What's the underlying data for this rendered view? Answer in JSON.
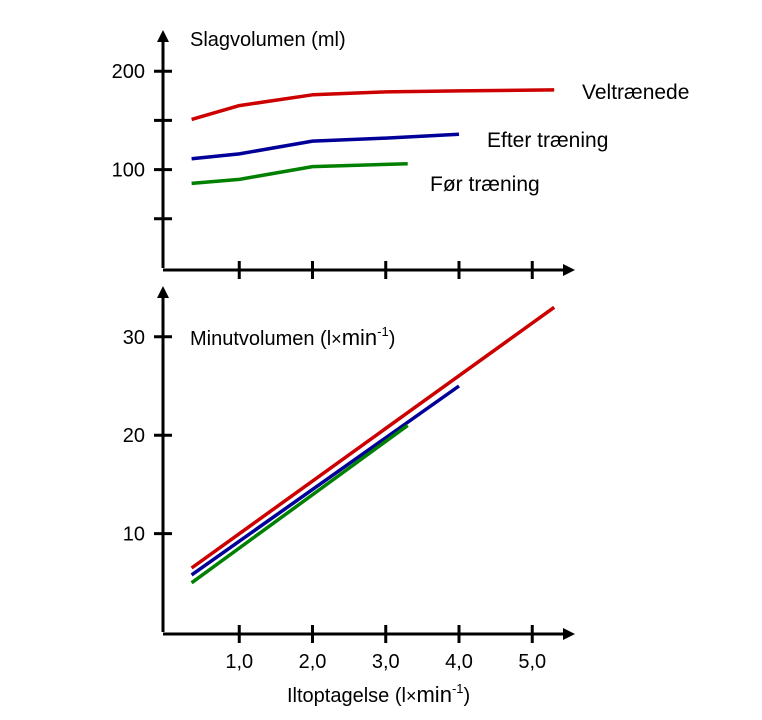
{
  "chart_data": [
    {
      "type": "line",
      "title": "Slagvolumen (ml)",
      "ylim": [
        0,
        200
      ],
      "xlim": [
        0,
        5.5
      ],
      "yticks": [
        50,
        100,
        150,
        200
      ],
      "ytick_labels": [
        "",
        "100",
        "",
        "200"
      ],
      "xticks": [
        1,
        2,
        3,
        4,
        5
      ],
      "grid": false,
      "series": [
        {
          "name": "Veltrænede",
          "color": "#cc0000",
          "x": [
            0.35,
            1.0,
            2.0,
            3.0,
            4.0,
            5.3
          ],
          "y": [
            151,
            165,
            176,
            179,
            180,
            181
          ]
        },
        {
          "name": "Efter træning",
          "color": "#000099",
          "x": [
            0.35,
            1.0,
            2.0,
            3.0,
            4.0
          ],
          "y": [
            111,
            116,
            129,
            132,
            136
          ]
        },
        {
          "name": "Før træning",
          "color": "#008000",
          "x": [
            0.35,
            1.0,
            2.0,
            3.3
          ],
          "y": [
            86,
            90,
            103,
            106
          ]
        }
      ]
    },
    {
      "type": "line",
      "title_main": "Minutvolumen (l",
      "title_times": "×",
      "title_unit": "min",
      "title_exp": "-1",
      "title_close": ")",
      "ylim": [
        0,
        35
      ],
      "xlim": [
        0,
        5.5
      ],
      "yticks": [
        10,
        20,
        30
      ],
      "ytick_labels": [
        "10",
        "20",
        "30"
      ],
      "xticks": [
        1,
        2,
        3,
        4,
        5
      ],
      "xtick_labels": [
        "1,0",
        "2,0",
        "3,0",
        "4,0",
        "5,0"
      ],
      "xlabel_main": "Iltoptagelse (l",
      "xlabel_times": "×",
      "xlabel_unit": "min",
      "xlabel_exp": "-1",
      "xlabel_close": ")",
      "grid": false,
      "series": [
        {
          "color": "#cc0000",
          "x": [
            0.35,
            5.3
          ],
          "y": [
            6.5,
            33.0
          ]
        },
        {
          "color": "#000099",
          "x": [
            0.35,
            4.0
          ],
          "y": [
            5.8,
            25.0
          ]
        },
        {
          "color": "#008000",
          "x": [
            0.35,
            3.3
          ],
          "y": [
            5.0,
            21.0
          ]
        }
      ]
    }
  ]
}
